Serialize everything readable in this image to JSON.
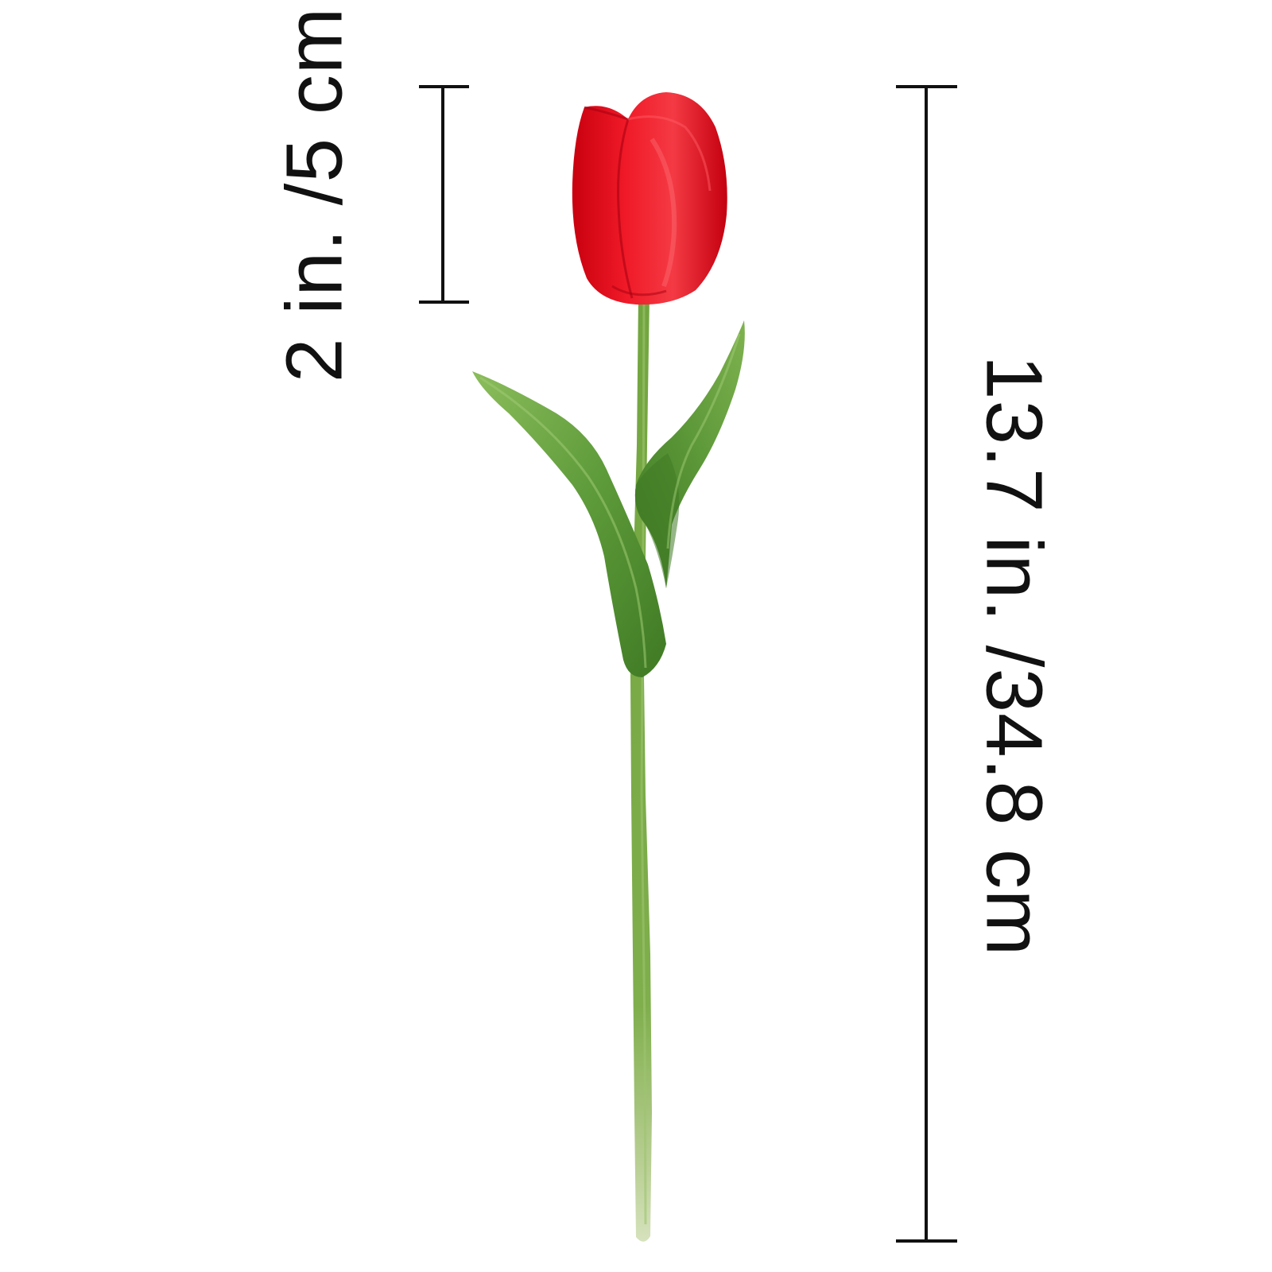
{
  "dimensions": {
    "flower_head": "2 in. /5 cm",
    "total_length": "13.7 in. /34.8 cm"
  },
  "colors": {
    "petal": "#e5091c",
    "petal_light": "#f2353d",
    "petal_dark": "#b50012",
    "stem": "#6fa33e",
    "stem_dark": "#4f8a2c",
    "stem_pale": "#b9cf94",
    "leaf": "#5e9b3a",
    "leaf_dark": "#3f7a24",
    "leaf_light": "#8cbd5c",
    "ink": "#111111",
    "background": "#ffffff"
  }
}
